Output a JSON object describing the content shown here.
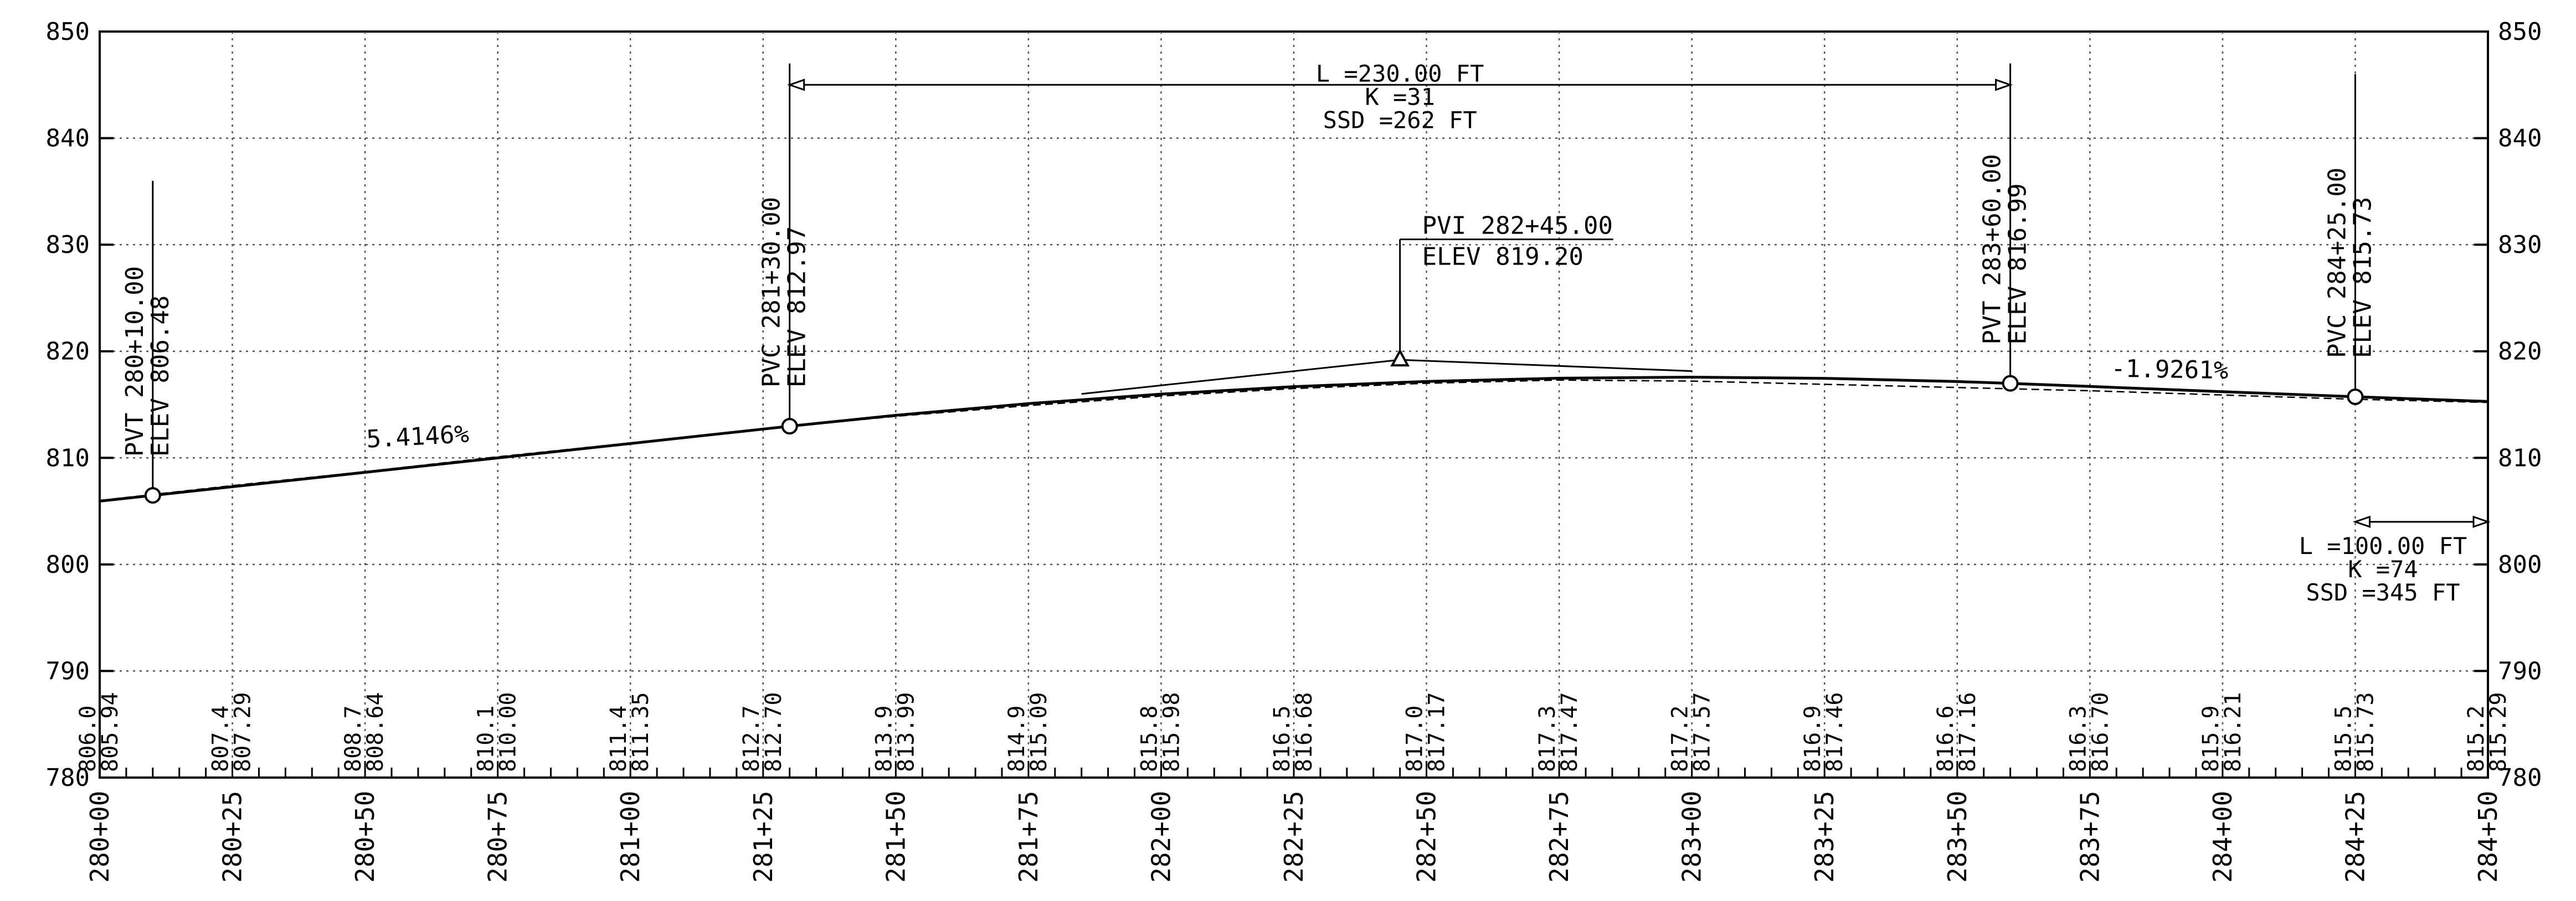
{
  "chart_data": {
    "type": "line",
    "xlim": [
      28000,
      28450
    ],
    "ylim": [
      780,
      850
    ],
    "y_ticks": [
      780,
      790,
      800,
      810,
      820,
      830,
      840,
      850
    ],
    "x_ticks": [
      {
        "x": 28000,
        "label": "280+00"
      },
      {
        "x": 28025,
        "label": "280+25"
      },
      {
        "x": 28050,
        "label": "280+50"
      },
      {
        "x": 28075,
        "label": "280+75"
      },
      {
        "x": 28100,
        "label": "281+00"
      },
      {
        "x": 28125,
        "label": "281+25"
      },
      {
        "x": 28150,
        "label": "281+50"
      },
      {
        "x": 28175,
        "label": "281+75"
      },
      {
        "x": 28200,
        "label": "282+00"
      },
      {
        "x": 28225,
        "label": "282+25"
      },
      {
        "x": 28250,
        "label": "282+50"
      },
      {
        "x": 28275,
        "label": "282+75"
      },
      {
        "x": 28300,
        "label": "283+00"
      },
      {
        "x": 28325,
        "label": "283+25"
      },
      {
        "x": 28350,
        "label": "283+50"
      },
      {
        "x": 28375,
        "label": "283+75"
      },
      {
        "x": 28400,
        "label": "284+00"
      },
      {
        "x": 28425,
        "label": "284+25"
      },
      {
        "x": 28450,
        "label": "284+50"
      }
    ],
    "grid": true,
    "profile": [
      {
        "x": 28000,
        "y": 805.94
      },
      {
        "x": 28010,
        "y": 806.48
      },
      {
        "x": 28130,
        "y": 812.97
      },
      {
        "x": 28150,
        "y": 813.99
      },
      {
        "x": 28175,
        "y": 815.09
      },
      {
        "x": 28200,
        "y": 815.98
      },
      {
        "x": 28225,
        "y": 816.68
      },
      {
        "x": 28250,
        "y": 817.17
      },
      {
        "x": 28275,
        "y": 817.47
      },
      {
        "x": 28300,
        "y": 817.57
      },
      {
        "x": 28325,
        "y": 817.46
      },
      {
        "x": 28350,
        "y": 817.16
      },
      {
        "x": 28360,
        "y": 816.99
      },
      {
        "x": 28375,
        "y": 816.7
      },
      {
        "x": 28400,
        "y": 816.21
      },
      {
        "x": 28425,
        "y": 815.73
      },
      {
        "x": 28450,
        "y": 815.29
      }
    ],
    "existing_ground": [
      {
        "x": 28000,
        "y": 806.0
      },
      {
        "x": 28025,
        "y": 807.4
      },
      {
        "x": 28050,
        "y": 808.7
      },
      {
        "x": 28075,
        "y": 810.1
      },
      {
        "x": 28100,
        "y": 811.4
      },
      {
        "x": 28125,
        "y": 812.7
      },
      {
        "x": 28150,
        "y": 813.9
      },
      {
        "x": 28175,
        "y": 814.9
      },
      {
        "x": 28200,
        "y": 815.8
      },
      {
        "x": 28225,
        "y": 816.5
      },
      {
        "x": 28250,
        "y": 817.0
      },
      {
        "x": 28275,
        "y": 817.3
      },
      {
        "x": 28300,
        "y": 817.2
      },
      {
        "x": 28325,
        "y": 816.9
      },
      {
        "x": 28350,
        "y": 816.6
      },
      {
        "x": 28375,
        "y": 816.3
      },
      {
        "x": 28400,
        "y": 815.9
      },
      {
        "x": 28425,
        "y": 815.5
      },
      {
        "x": 28450,
        "y": 815.2
      }
    ],
    "tangents": [
      {
        "x1": 28185,
        "y1": 816.0,
        "x2": 28245,
        "y2": 819.2
      },
      {
        "x1": 28245,
        "y1": 819.2,
        "x2": 28300,
        "y2": 818.14
      }
    ],
    "elevation_rows": {
      "existing": [
        {
          "x": 28000,
          "label": "806.0"
        },
        {
          "x": 28025,
          "label": "807.4"
        },
        {
          "x": 28050,
          "label": "808.7"
        },
        {
          "x": 28075,
          "label": "810.1"
        },
        {
          "x": 28100,
          "label": "811.4"
        },
        {
          "x": 28125,
          "label": "812.7"
        },
        {
          "x": 28150,
          "label": "813.9"
        },
        {
          "x": 28175,
          "label": "814.9"
        },
        {
          "x": 28200,
          "label": "815.8"
        },
        {
          "x": 28225,
          "label": "816.5"
        },
        {
          "x": 28250,
          "label": "817.0"
        },
        {
          "x": 28275,
          "label": "817.3"
        },
        {
          "x": 28300,
          "label": "817.2"
        },
        {
          "x": 28325,
          "label": "816.9"
        },
        {
          "x": 28350,
          "label": "816.6"
        },
        {
          "x": 28375,
          "label": "816.3"
        },
        {
          "x": 28400,
          "label": "815.9"
        },
        {
          "x": 28425,
          "label": "815.5"
        },
        {
          "x": 28450,
          "label": "815.2"
        }
      ],
      "proposed": [
        {
          "x": 28000,
          "label": "805.94"
        },
        {
          "x": 28025,
          "label": "807.29"
        },
        {
          "x": 28050,
          "label": "808.64"
        },
        {
          "x": 28075,
          "label": "810.00"
        },
        {
          "x": 28100,
          "label": "811.35"
        },
        {
          "x": 28125,
          "label": "812.70"
        },
        {
          "x": 28150,
          "label": "813.99"
        },
        {
          "x": 28175,
          "label": "815.09"
        },
        {
          "x": 28200,
          "label": "815.98"
        },
        {
          "x": 28225,
          "label": "816.68"
        },
        {
          "x": 28250,
          "label": "817.17"
        },
        {
          "x": 28275,
          "label": "817.47"
        },
        {
          "x": 28300,
          "label": "817.57"
        },
        {
          "x": 28325,
          "label": "817.46"
        },
        {
          "x": 28350,
          "label": "817.16"
        },
        {
          "x": 28375,
          "label": "816.70"
        },
        {
          "x": 28400,
          "label": "816.21"
        },
        {
          "x": 28425,
          "label": "815.73"
        },
        {
          "x": 28450,
          "label": "815.29"
        }
      ]
    },
    "points": [
      {
        "kind": "circle",
        "x": 28010,
        "y": 806.48,
        "leader_top": 836,
        "lines": [
          "PVT 280+10.00",
          "ELEV 806.48"
        ]
      },
      {
        "kind": "circle",
        "x": 28130,
        "y": 812.97,
        "leader_top": 847,
        "lines": [
          "PVC 281+30.00",
          "ELEV 812.97"
        ]
      },
      {
        "kind": "circle",
        "x": 28360,
        "y": 816.99,
        "leader_top": 847,
        "lines": [
          "PVT 283+60.00",
          "ELEV 816.99"
        ]
      },
      {
        "kind": "circle",
        "x": 28425,
        "y": 815.73,
        "leader_top": 846,
        "lines": [
          "PVC 284+25.00",
          "ELEV 815.73"
        ]
      }
    ],
    "pvi": {
      "x": 28245,
      "y": 819.2,
      "label_y": 830.5,
      "lines": [
        "PVI 282+45.00",
        "ELEV 819.20"
      ]
    },
    "grades": [
      {
        "x": 28060,
        "y": 810.6,
        "label": "5.4146%",
        "rotate": -3
      },
      {
        "x": 28390,
        "y": 816.9,
        "label": "-1.9261%",
        "rotate": 1
      }
    ],
    "curves": [
      {
        "x1": 28130,
        "x2": 28360,
        "y": 845,
        "lines": [
          "L =230.00 FT",
          "K =31",
          "SSD =262 FT"
        ]
      },
      {
        "x1": 28425,
        "x2": 28450,
        "y": 804,
        "lines": [
          "L =100.00 FT",
          "K =74",
          "SSD =345 FT"
        ]
      }
    ]
  }
}
